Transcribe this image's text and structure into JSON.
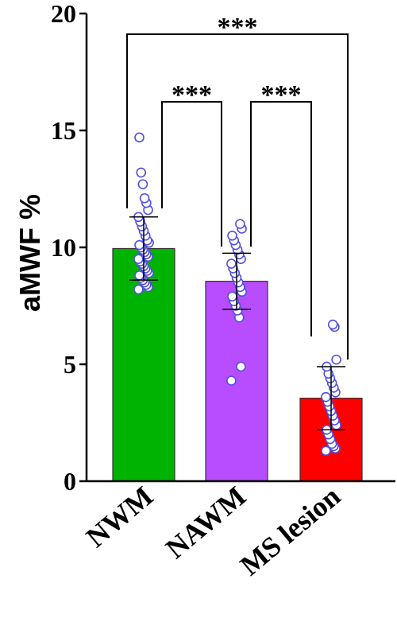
{
  "chart_data": {
    "type": "bar",
    "title": "",
    "xlabel": "",
    "ylabel": "aMWF %",
    "ylim": [
      0,
      20
    ],
    "yticks": [
      0,
      5,
      10,
      15,
      20
    ],
    "grid": false,
    "categories": [
      "NWM",
      "NAWM",
      "MS lesion"
    ],
    "values": [
      9.95,
      8.55,
      3.55
    ],
    "sd": [
      1.35,
      1.2,
      1.35
    ],
    "bar_colors": [
      "#00b300",
      "#b84dff",
      "#ff0000"
    ],
    "point_color": "#5050e0",
    "points": [
      [
        8.2,
        8.3,
        8.4,
        8.5,
        8.6,
        8.7,
        8.8,
        8.9,
        9.0,
        9.1,
        9.2,
        9.3,
        9.4,
        9.5,
        9.6,
        9.7,
        9.8,
        9.9,
        10.0,
        10.1,
        10.2,
        10.3,
        10.5,
        10.7,
        10.9,
        11.1,
        11.3,
        11.6,
        11.9,
        12.1,
        12.7,
        13.2,
        14.7
      ],
      [
        4.3,
        4.9,
        7.0,
        7.3,
        7.5,
        7.7,
        7.9,
        8.1,
        8.3,
        8.5,
        8.7,
        8.9,
        9.1,
        9.3,
        9.5,
        9.7,
        9.9,
        10.1,
        10.3,
        10.5,
        10.8,
        11.0
      ],
      [
        1.3,
        1.4,
        1.5,
        1.6,
        1.8,
        2.0,
        2.2,
        2.4,
        2.6,
        2.8,
        3.0,
        3.2,
        3.4,
        3.6,
        3.8,
        4.0,
        4.2,
        4.4,
        4.6,
        4.9,
        5.2,
        6.6,
        6.7
      ]
    ],
    "significance": [
      {
        "from": 0,
        "to": 1,
        "label": "***"
      },
      {
        "from": 1,
        "to": 2,
        "label": "***"
      },
      {
        "from": 0,
        "to": 2,
        "label": "***"
      }
    ]
  }
}
